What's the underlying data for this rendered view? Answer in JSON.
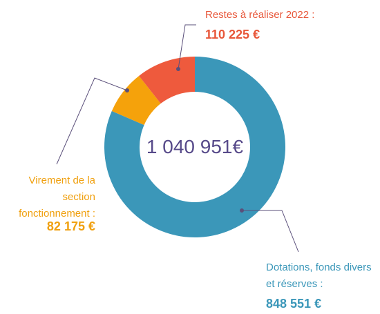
{
  "chart_data": {
    "type": "donut",
    "categories": [
      "Dotations, fonds divers et réserves :",
      "Virement de la section fonctionnement :",
      "Restes à réaliser 2022 :"
    ],
    "values": [
      848551,
      82175,
      110225
    ],
    "value_labels": [
      "848 551 €",
      "82 175 €",
      "110 225 €"
    ],
    "colors": [
      "#3b97b9",
      "#f5a20b",
      "#ee5a3d"
    ],
    "center_text": "1 040 951€"
  }
}
